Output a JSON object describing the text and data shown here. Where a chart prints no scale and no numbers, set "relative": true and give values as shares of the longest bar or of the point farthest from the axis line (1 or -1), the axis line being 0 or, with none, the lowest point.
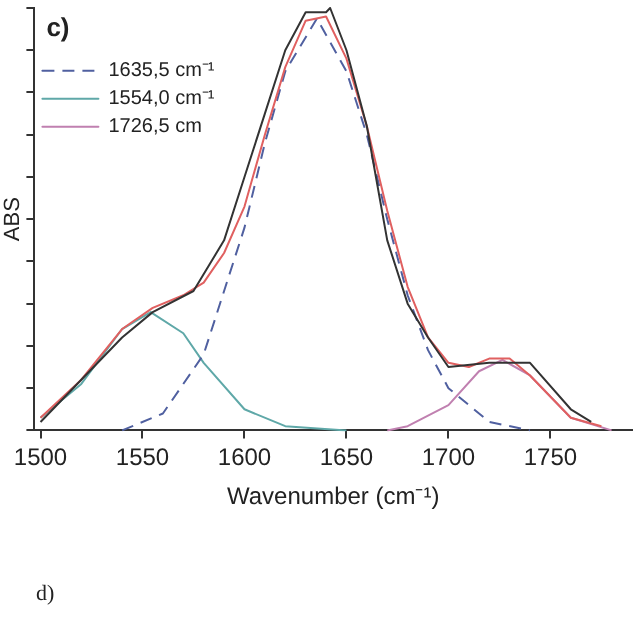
{
  "chart_data": {
    "type": "line",
    "relative": true,
    "xlabel": "Wavenumber (cm⁻¹)",
    "ylabel": "ABS",
    "xlim": [
      1497,
      1790
    ],
    "xticks": [
      1500,
      1550,
      1600,
      1650,
      1700,
      1750
    ],
    "grid": false,
    "legend": "top left",
    "marker": "none",
    "annotations": [
      "c)",
      "d)"
    ],
    "series": [
      {
        "color": "#333333",
        "line_style": "solid",
        "x": [
          1500,
          1520,
          1540,
          1555,
          1575,
          1590,
          1600,
          1610,
          1620,
          1630,
          1640,
          1642,
          1650,
          1660,
          1670,
          1680,
          1690,
          1700,
          1720,
          1740,
          1760,
          1770
        ],
        "values": [
          0.02,
          0.12,
          0.22,
          0.28,
          0.33,
          0.45,
          0.6,
          0.75,
          0.9,
          0.99,
          0.99,
          1.0,
          0.9,
          0.72,
          0.45,
          0.3,
          0.22,
          0.15,
          0.16,
          0.16,
          0.05,
          0.02
        ]
      },
      {
        "color": "#e06060",
        "line_style": "solid",
        "x": [
          1500,
          1520,
          1540,
          1555,
          1570,
          1580,
          1590,
          1600,
          1610,
          1620,
          1630,
          1640,
          1650,
          1660,
          1670,
          1680,
          1690,
          1700,
          1710,
          1720,
          1730,
          1740,
          1760,
          1775
        ],
        "values": [
          0.03,
          0.12,
          0.24,
          0.29,
          0.32,
          0.35,
          0.42,
          0.53,
          0.7,
          0.86,
          0.97,
          0.98,
          0.88,
          0.72,
          0.52,
          0.34,
          0.22,
          0.16,
          0.15,
          0.17,
          0.17,
          0.13,
          0.03,
          0.01
        ]
      },
      {
        "name": "1635,5 cm⁻¹",
        "color": "#5060a0",
        "line_style": "dashed",
        "x": [
          1540,
          1560,
          1580,
          1600,
          1610,
          1620,
          1635.5,
          1650,
          1660,
          1670,
          1680,
          1690,
          1700,
          1720,
          1740
        ],
        "values": [
          0.0,
          0.04,
          0.18,
          0.48,
          0.68,
          0.85,
          0.975,
          0.85,
          0.7,
          0.5,
          0.32,
          0.19,
          0.1,
          0.02,
          0.0
        ]
      },
      {
        "name": "1554,0 cm⁻¹",
        "color": "#5fa8a8",
        "line_style": "solid",
        "x": [
          1500,
          1520,
          1540,
          1554,
          1570,
          1580,
          1600,
          1620,
          1650
        ],
        "values": [
          0.03,
          0.11,
          0.24,
          0.28,
          0.23,
          0.16,
          0.05,
          0.01,
          0.0
        ]
      },
      {
        "name": "1726,5 cm",
        "color": "#c080b0",
        "line_style": "solid",
        "x": [
          1670,
          1680,
          1700,
          1715,
          1726.5,
          1740,
          1760,
          1780
        ],
        "values": [
          0.0,
          0.01,
          0.06,
          0.14,
          0.167,
          0.13,
          0.03,
          0.0
        ]
      }
    ]
  }
}
